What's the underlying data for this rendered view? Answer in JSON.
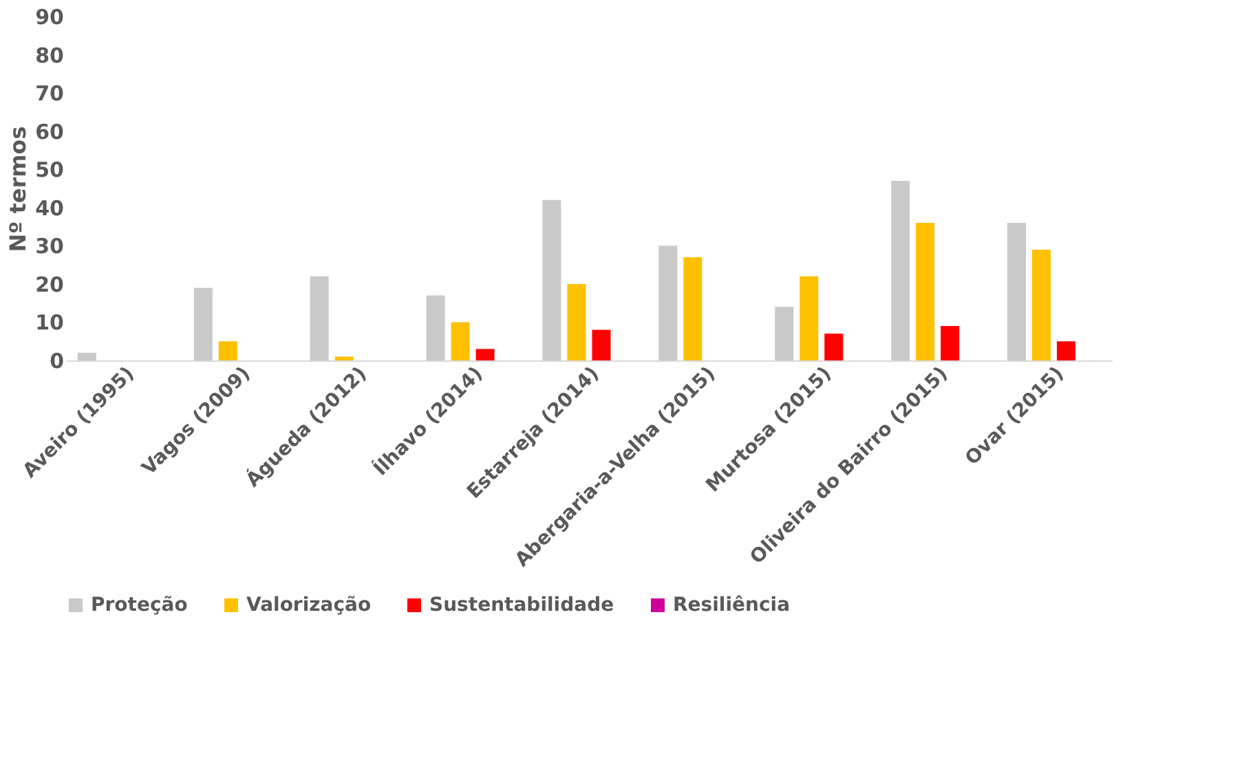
{
  "chart_data": {
    "type": "bar",
    "ylabel": "Nº termos",
    "categories": [
      "Aveiro (1995)",
      "Vagos (2009)",
      "Águeda (2012)",
      "Ílhavo (2014)",
      "Estarreja (2014)",
      "Abergaria-a-Velha (2015)",
      "Murtosa (2015)",
      "Oliveira do Bairro (2015)",
      "Ovar (2015)"
    ],
    "series": [
      {
        "name": "Proteção",
        "color": "#c9c9c9",
        "values": [
          2,
          19,
          22,
          17,
          42,
          30,
          14,
          47,
          36
        ]
      },
      {
        "name": "Valorização",
        "color": "#ffc000",
        "values": [
          0,
          5,
          1,
          10,
          20,
          27,
          22,
          36,
          29
        ]
      },
      {
        "name": "Sustentabilidade",
        "color": "#ff0000",
        "values": [
          0,
          0,
          0,
          3,
          8,
          0,
          7,
          9,
          5
        ]
      },
      {
        "name": "Resiliência",
        "color": "#cc0099",
        "values": [
          0,
          0,
          0,
          0,
          0,
          0,
          0,
          0,
          0
        ]
      }
    ],
    "ylim": [
      0,
      90
    ],
    "yticks": [
      0,
      10,
      20,
      30,
      40,
      50,
      60,
      70,
      80,
      90
    ],
    "grid": false,
    "legend": "bottom"
  }
}
